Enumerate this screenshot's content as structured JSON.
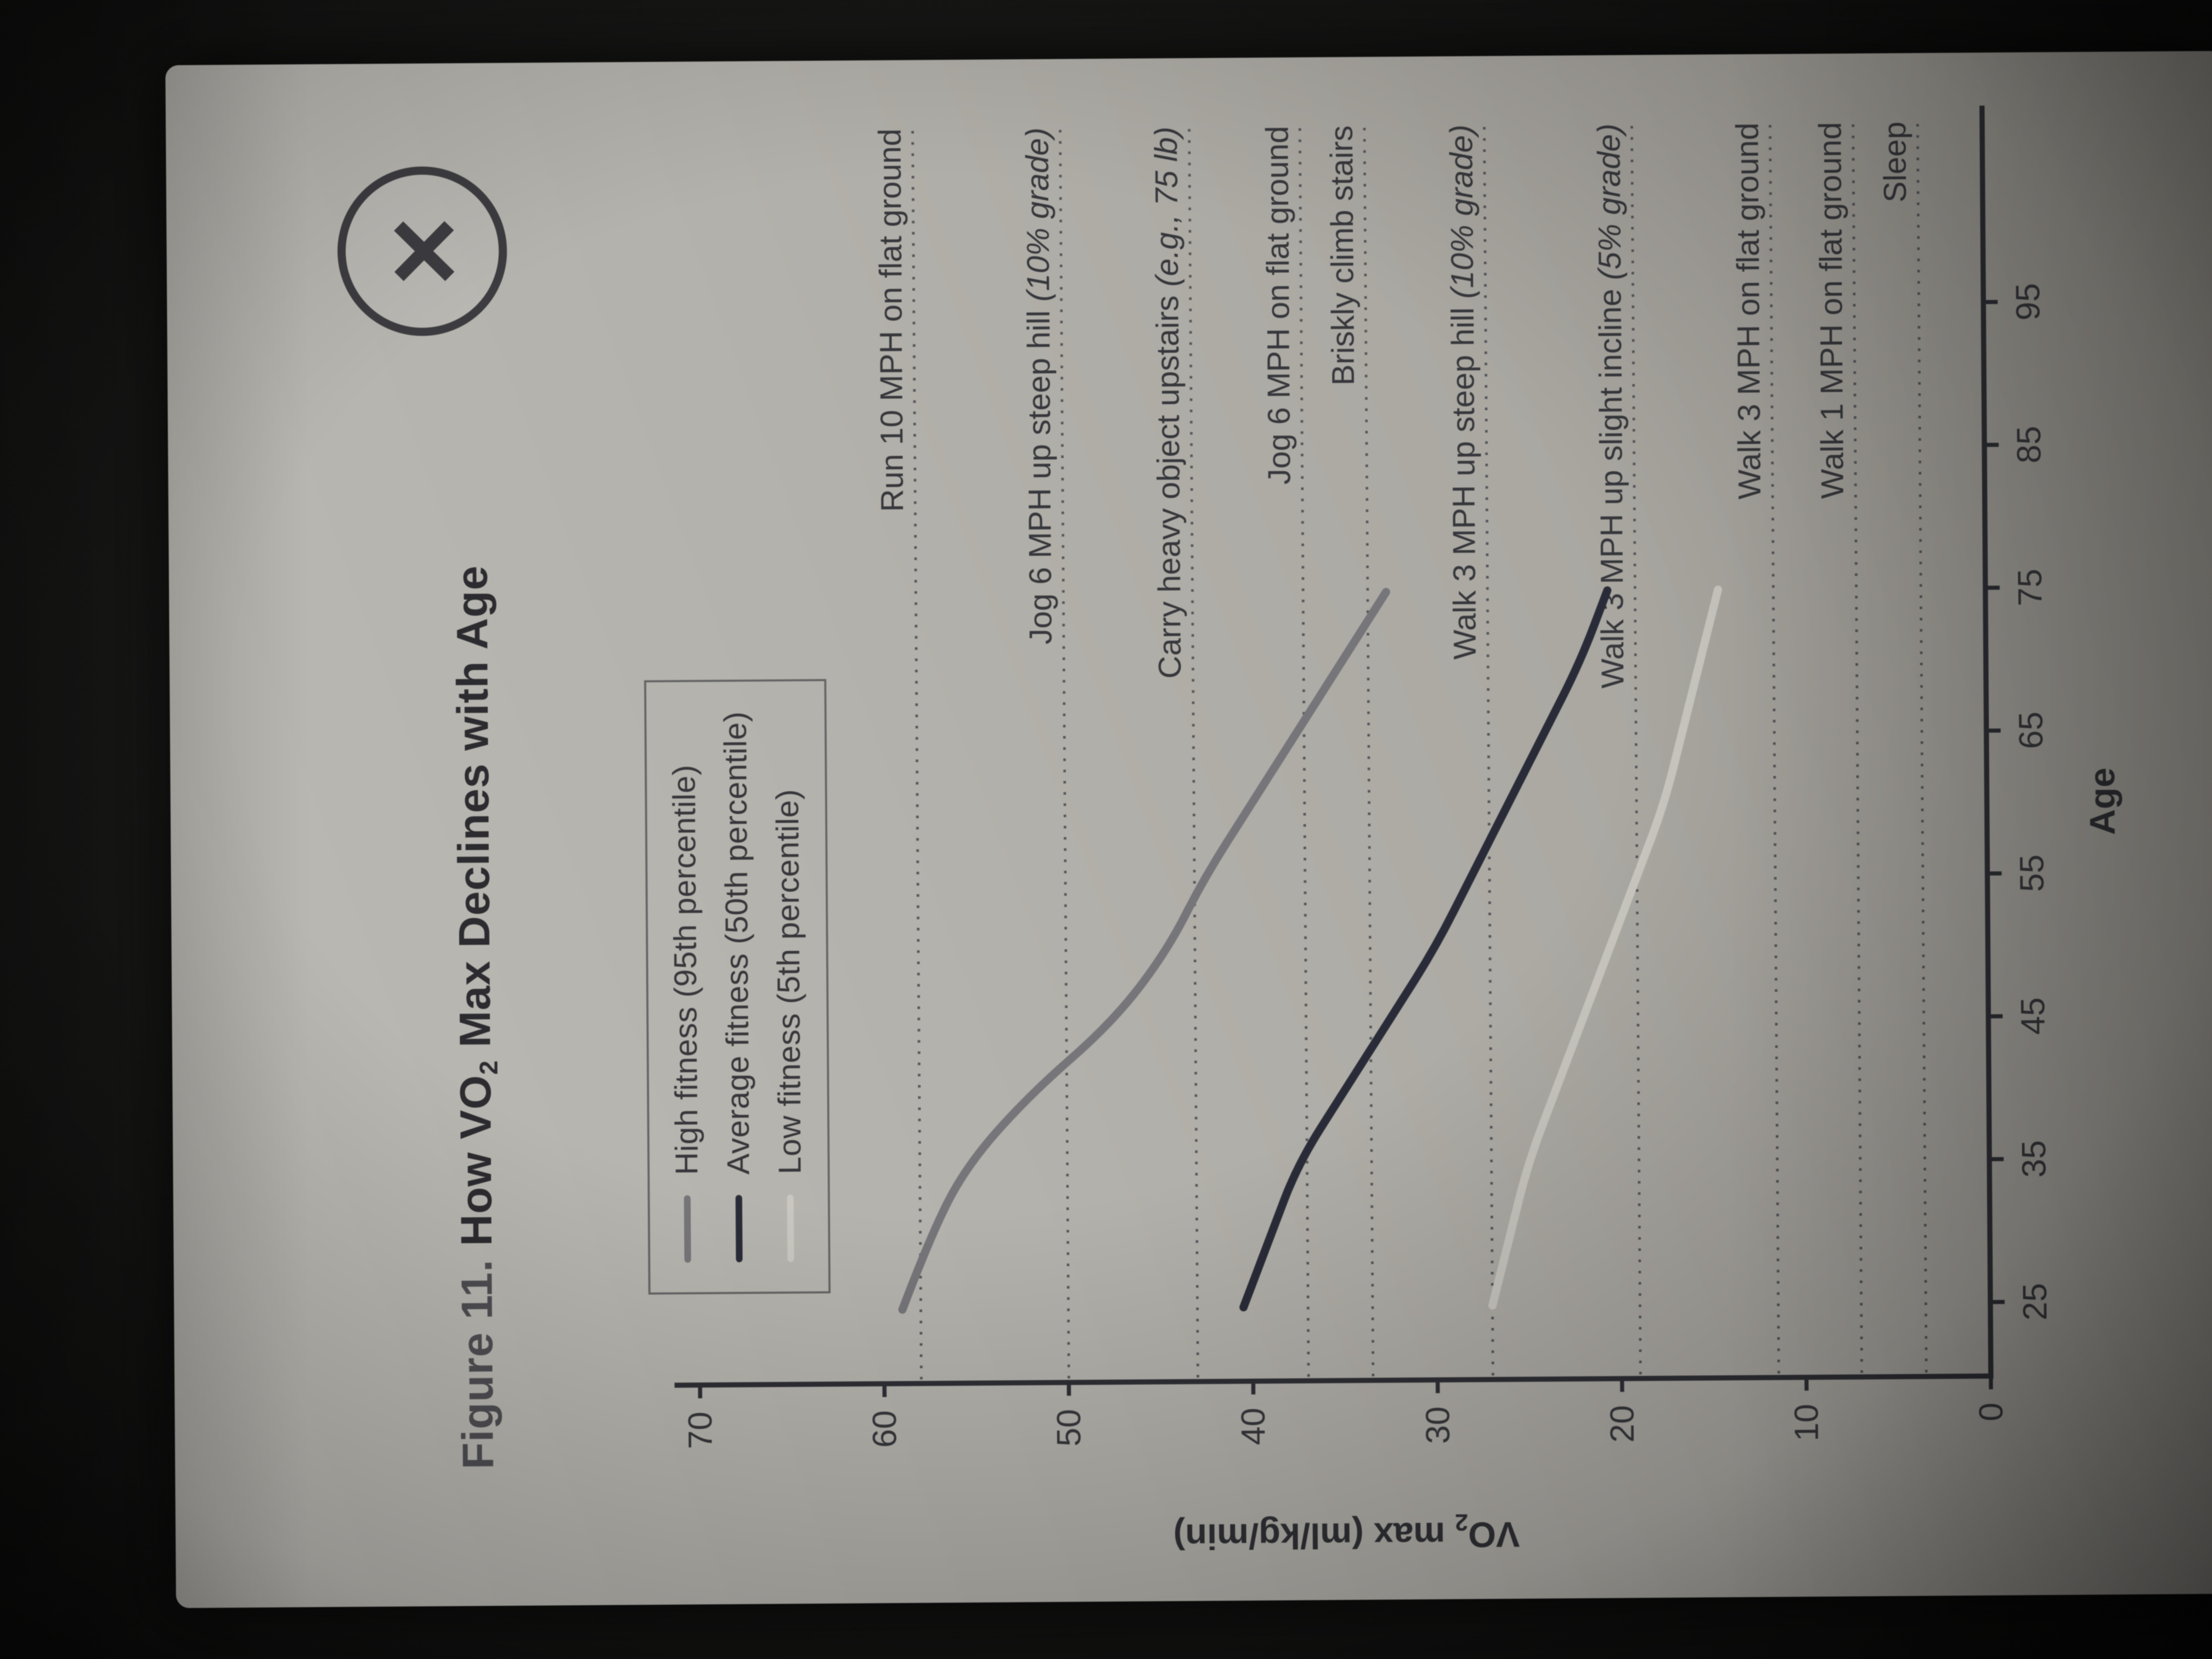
{
  "window": {
    "close_glyph": "×"
  },
  "figure": {
    "prefix": "Figure 11.",
    "title_pre": "How VO",
    "title_sub": "2",
    "title_post": " Max Declines with Age"
  },
  "legend": {
    "items": [
      {
        "label": "High fitness (95th percentile)",
        "color": "#75757a"
      },
      {
        "label": "Average fitness (50th percentile)",
        "color": "#292c39"
      },
      {
        "label": "Low fitness (5th percentile)",
        "color": "#c9c7bf"
      }
    ]
  },
  "chart_data": {
    "type": "line",
    "title": "Figure 11. How VO2 Max Declines with Age",
    "xlabel": "Age",
    "ylabel": "VO2 max (ml/kg/min)",
    "ylabel_parts": {
      "pre": "VO",
      "sub": "2",
      "post": " max (ml/kg/min)"
    },
    "xlim": [
      20,
      100
    ],
    "ylim": [
      0,
      70
    ],
    "x_ticks": [
      25,
      35,
      45,
      55,
      65,
      75,
      85,
      95
    ],
    "y_ticks": [
      0,
      10,
      20,
      30,
      40,
      50,
      60,
      70
    ],
    "grid": false,
    "legend_position": "top-left",
    "series": [
      {
        "name": "High fitness (95th percentile)",
        "color": "#75757a",
        "points": [
          [
            25,
            59
          ],
          [
            30,
            57.5
          ],
          [
            35,
            55.5
          ],
          [
            40,
            52
          ],
          [
            45,
            47.5
          ],
          [
            50,
            44.5
          ],
          [
            55,
            42.5
          ],
          [
            60,
            40
          ],
          [
            65,
            37.5
          ],
          [
            70,
            35
          ],
          [
            75,
            32.5
          ]
        ]
      },
      {
        "name": "Average fitness (50th percentile)",
        "color": "#292c39",
        "points": [
          [
            25,
            40.5
          ],
          [
            30,
            39
          ],
          [
            35,
            37.5
          ],
          [
            40,
            35
          ],
          [
            45,
            32.5
          ],
          [
            50,
            30
          ],
          [
            55,
            28
          ],
          [
            60,
            26
          ],
          [
            65,
            24
          ],
          [
            70,
            22
          ],
          [
            75,
            20.5
          ]
        ]
      },
      {
        "name": "Low fitness (5th percentile)",
        "color": "#c9c7bf",
        "points": [
          [
            25,
            27
          ],
          [
            30,
            26
          ],
          [
            35,
            25
          ],
          [
            40,
            23.5
          ],
          [
            45,
            22
          ],
          [
            50,
            20.5
          ],
          [
            55,
            19
          ],
          [
            60,
            17.5
          ],
          [
            65,
            16.5
          ],
          [
            70,
            15.5
          ],
          [
            75,
            14.5
          ]
        ]
      }
    ],
    "reference_lines": [
      {
        "label": "Run 10 MPH on flat ground",
        "detail": "",
        "value": 58
      },
      {
        "label": "Jog 6 MPH up steep hill ",
        "detail": "(10% grade)",
        "value": 50
      },
      {
        "label": "Carry heavy object upstairs ",
        "detail": "(e.g., 75 lb)",
        "value": 43
      },
      {
        "label": "Jog 6 MPH on flat ground",
        "detail": "",
        "value": 37
      },
      {
        "label": "Briskly climb stairs",
        "detail": "",
        "value": 33.5
      },
      {
        "label": "Walk 3 MPH up steep hill ",
        "detail": "(10% grade)",
        "value": 27
      },
      {
        "label": "Walk 3 MPH up slight incline ",
        "detail": "(5% grade)",
        "value": 19
      },
      {
        "label": "Walk 3 MPH on flat ground",
        "detail": "",
        "value": 11.5
      },
      {
        "label": "Walk 1 MPH on flat ground",
        "detail": "",
        "value": 7
      },
      {
        "label": "Sleep",
        "detail": "",
        "value": 3.5
      }
    ]
  }
}
